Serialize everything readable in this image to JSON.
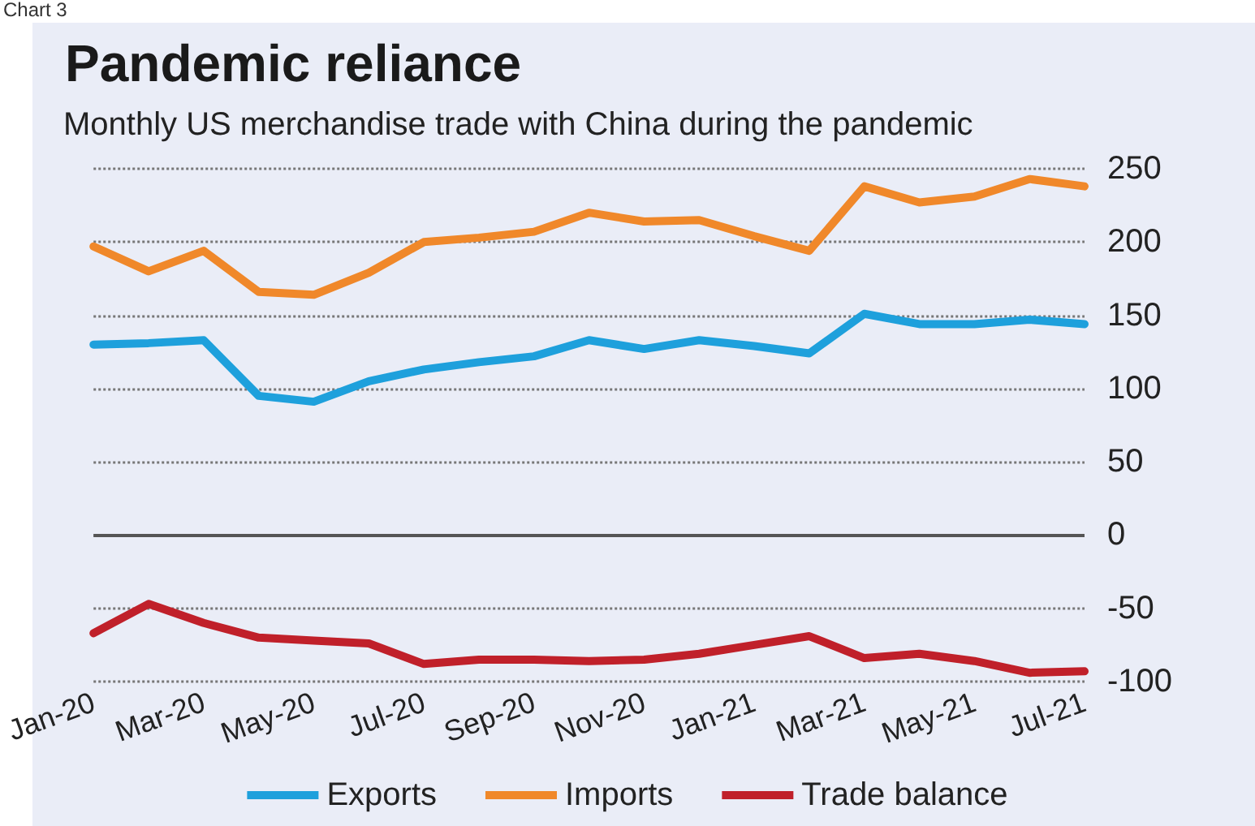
{
  "chart_data": {
    "type": "line",
    "title": "Pandemic reliance",
    "subtitle": "Monthly US merchandise trade with China during the pandemic",
    "annotations": [
      "Chart 3"
    ],
    "categories": [
      "Jan-20",
      null,
      "Mar-20",
      null,
      "May-20",
      null,
      "Jul-20",
      null,
      "Sep-20",
      null,
      "Nov-20",
      null,
      "Jan-21",
      null,
      "Mar-21",
      null,
      "May-21",
      null,
      "Jul-21"
    ],
    "series": [
      {
        "name": "Exports",
        "color": "#1ea0dc",
        "values": [
          130,
          131,
          133,
          95,
          91,
          105,
          113,
          118,
          122,
          133,
          127,
          133,
          129,
          124,
          151,
          144,
          144,
          147,
          144
        ]
      },
      {
        "name": "Imports",
        "color": "#f0882a",
        "values": [
          197,
          180,
          194,
          166,
          164,
          179,
          200,
          203,
          207,
          220,
          214,
          215,
          204,
          194,
          238,
          227,
          231,
          243,
          238
        ]
      },
      {
        "name": "Trade balance",
        "color": "#c0202a",
        "values": [
          -67,
          -47,
          -60,
          -70,
          -72,
          -74,
          -88,
          -85,
          -85,
          -86,
          -85,
          -81,
          -75,
          -69,
          -84,
          -81,
          -86,
          -94,
          -93
        ]
      }
    ],
    "ylim": [
      -100,
      250
    ],
    "yticks": [
      -100,
      -50,
      0,
      50,
      100,
      150,
      200,
      250
    ],
    "ref_lines": [
      {
        "axis": "y",
        "value": 0,
        "color": "#555555",
        "line_style": "solid"
      }
    ],
    "grid": "y",
    "legend": "bottom",
    "marker": "none",
    "line_style": "solid"
  }
}
